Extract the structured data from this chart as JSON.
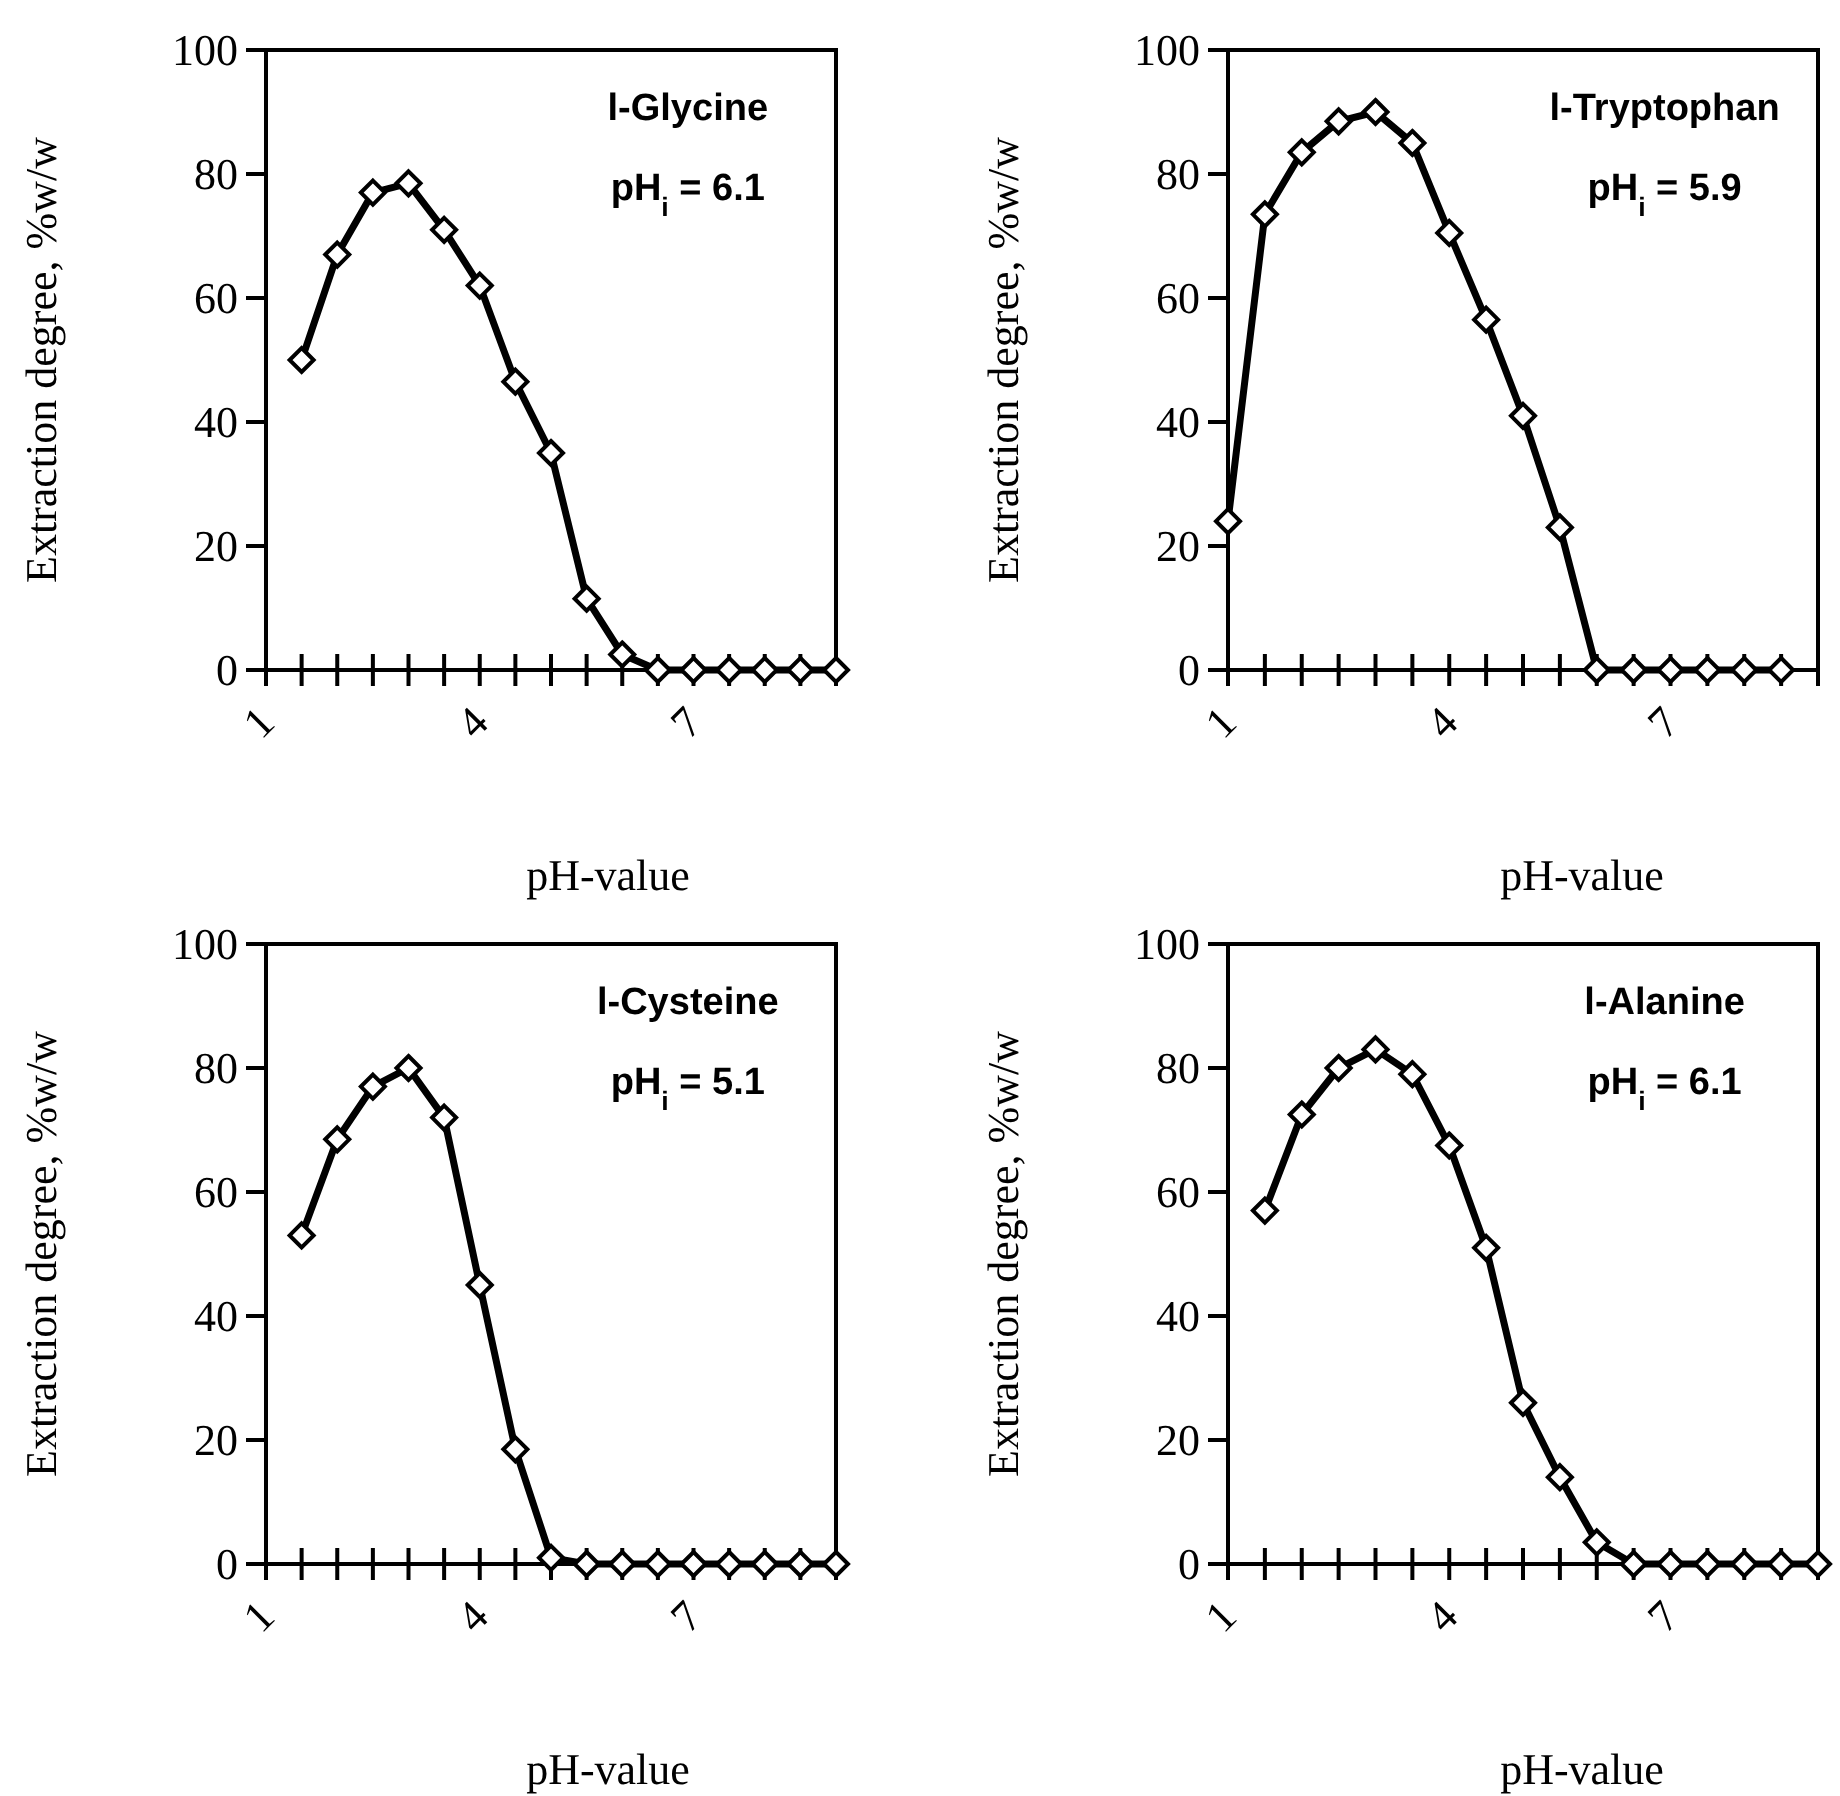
{
  "chart_data": [
    {
      "type": "line",
      "annotations": [
        "l-Glycine",
        "pH$_{i}$ = 6.1"
      ],
      "xlabel": "pH-value",
      "ylabel": "Extraction degree, %w/w",
      "marker": "diamond",
      "line_style": "solid",
      "grid": false,
      "xlim": [
        1,
        9
      ],
      "ylim": [
        0,
        100
      ],
      "yticks": [
        0,
        20,
        40,
        60,
        80,
        100
      ],
      "xticks": [
        1,
        {
          "value": 1.5,
          "label": null
        },
        {
          "value": 2,
          "label": null
        },
        {
          "value": 2.5,
          "label": null
        },
        {
          "value": 3,
          "label": null
        },
        {
          "value": 3.5,
          "label": null
        },
        4,
        {
          "value": 4.5,
          "label": null
        },
        {
          "value": 5,
          "label": null
        },
        {
          "value": 5.5,
          "label": null
        },
        {
          "value": 6,
          "label": null
        },
        {
          "value": 6.5,
          "label": null
        },
        7,
        {
          "value": 7.5,
          "label": null
        },
        {
          "value": 8,
          "label": null
        },
        {
          "value": 8.5,
          "label": null
        },
        {
          "value": 9,
          "label": null
        }
      ],
      "series": [
        {
          "color": "#000000",
          "x": [
            1.5,
            2,
            2.5,
            3,
            3.5,
            4,
            4.5,
            5,
            5.5,
            6,
            6.5,
            7,
            7.5,
            8,
            8.5,
            9
          ],
          "values": [
            50,
            67,
            77,
            78.5,
            71,
            62,
            46.5,
            35,
            11.5,
            2.5,
            0,
            0,
            0,
            0,
            0,
            0
          ]
        }
      ]
    },
    {
      "type": "line",
      "annotations": [
        "l-Tryptophan",
        "pH$_{i}$ = 5.9"
      ],
      "xlabel": "pH-value",
      "ylabel": "Extraction degree, %w/w",
      "marker": "diamond",
      "line_style": "solid",
      "grid": false,
      "xlim": [
        1,
        9
      ],
      "ylim": [
        0,
        100
      ],
      "yticks": [
        0,
        20,
        40,
        60,
        80,
        100
      ],
      "xticks": [
        1,
        {
          "value": 1.5,
          "label": null
        },
        {
          "value": 2,
          "label": null
        },
        {
          "value": 2.5,
          "label": null
        },
        {
          "value": 3,
          "label": null
        },
        {
          "value": 3.5,
          "label": null
        },
        4,
        {
          "value": 4.5,
          "label": null
        },
        {
          "value": 5,
          "label": null
        },
        {
          "value": 5.5,
          "label": null
        },
        {
          "value": 6,
          "label": null
        },
        {
          "value": 6.5,
          "label": null
        },
        7,
        {
          "value": 7.5,
          "label": null
        },
        {
          "value": 8,
          "label": null
        },
        {
          "value": 8.5,
          "label": null
        },
        {
          "value": 9,
          "label": null
        }
      ],
      "series": [
        {
          "color": "#000000",
          "x": [
            1,
            1.5,
            2,
            2.5,
            3,
            3.5,
            4,
            4.5,
            5,
            5.5,
            6,
            6.5,
            7,
            7.5,
            8,
            8.5
          ],
          "values": [
            24,
            73.5,
            83.5,
            88.5,
            90,
            85,
            70.5,
            56.5,
            41,
            23,
            0,
            0,
            0,
            0,
            0,
            0
          ]
        }
      ]
    },
    {
      "type": "line",
      "annotations": [
        "l-Cysteine",
        "pH$_{i}$ = 5.1"
      ],
      "xlabel": "pH-value",
      "ylabel": "Extraction degree, %w/w",
      "marker": "diamond",
      "line_style": "solid",
      "grid": false,
      "xlim": [
        1,
        9
      ],
      "ylim": [
        0,
        100
      ],
      "yticks": [
        0,
        20,
        40,
        60,
        80,
        100
      ],
      "xticks": [
        1,
        {
          "value": 1.5,
          "label": null
        },
        {
          "value": 2,
          "label": null
        },
        {
          "value": 2.5,
          "label": null
        },
        {
          "value": 3,
          "label": null
        },
        {
          "value": 3.5,
          "label": null
        },
        4,
        {
          "value": 4.5,
          "label": null
        },
        {
          "value": 5,
          "label": null
        },
        {
          "value": 5.5,
          "label": null
        },
        {
          "value": 6,
          "label": null
        },
        {
          "value": 6.5,
          "label": null
        },
        7,
        {
          "value": 7.5,
          "label": null
        },
        {
          "value": 8,
          "label": null
        },
        {
          "value": 8.5,
          "label": null
        },
        {
          "value": 9,
          "label": null
        }
      ],
      "series": [
        {
          "color": "#000000",
          "x": [
            1.5,
            2,
            2.5,
            3,
            3.5,
            4,
            4.5,
            5,
            5.5,
            6,
            6.5,
            7,
            7.5,
            8,
            8.5,
            9
          ],
          "values": [
            53,
            68.5,
            77,
            80,
            72,
            45,
            18.5,
            1,
            0,
            0,
            0,
            0,
            0,
            0,
            0,
            0
          ]
        }
      ]
    },
    {
      "type": "line",
      "annotations": [
        "l-Alanine",
        "pH$_{i}$ = 6.1"
      ],
      "xlabel": "pH-value",
      "ylabel": "Extraction degree, %w/w",
      "marker": "diamond",
      "line_style": "solid",
      "grid": false,
      "xlim": [
        1,
        9
      ],
      "ylim": [
        0,
        100
      ],
      "yticks": [
        0,
        20,
        40,
        60,
        80,
        100
      ],
      "xticks": [
        1,
        {
          "value": 1.5,
          "label": null
        },
        {
          "value": 2,
          "label": null
        },
        {
          "value": 2.5,
          "label": null
        },
        {
          "value": 3,
          "label": null
        },
        {
          "value": 3.5,
          "label": null
        },
        4,
        {
          "value": 4.5,
          "label": null
        },
        {
          "value": 5,
          "label": null
        },
        {
          "value": 5.5,
          "label": null
        },
        {
          "value": 6,
          "label": null
        },
        {
          "value": 6.5,
          "label": null
        },
        7,
        {
          "value": 7.5,
          "label": null
        },
        {
          "value": 8,
          "label": null
        },
        {
          "value": 8.5,
          "label": null
        },
        {
          "value": 9,
          "label": null
        }
      ],
      "series": [
        {
          "color": "#000000",
          "x": [
            1.5,
            2,
            2.5,
            3,
            3.5,
            4,
            4.5,
            5,
            5.5,
            6,
            6.5,
            7,
            7.5,
            8,
            8.5,
            9
          ],
          "values": [
            57,
            72.5,
            80,
            83,
            79,
            67.5,
            51,
            26,
            14,
            3.5,
            0,
            0,
            0,
            0,
            0,
            0
          ]
        }
      ]
    }
  ]
}
